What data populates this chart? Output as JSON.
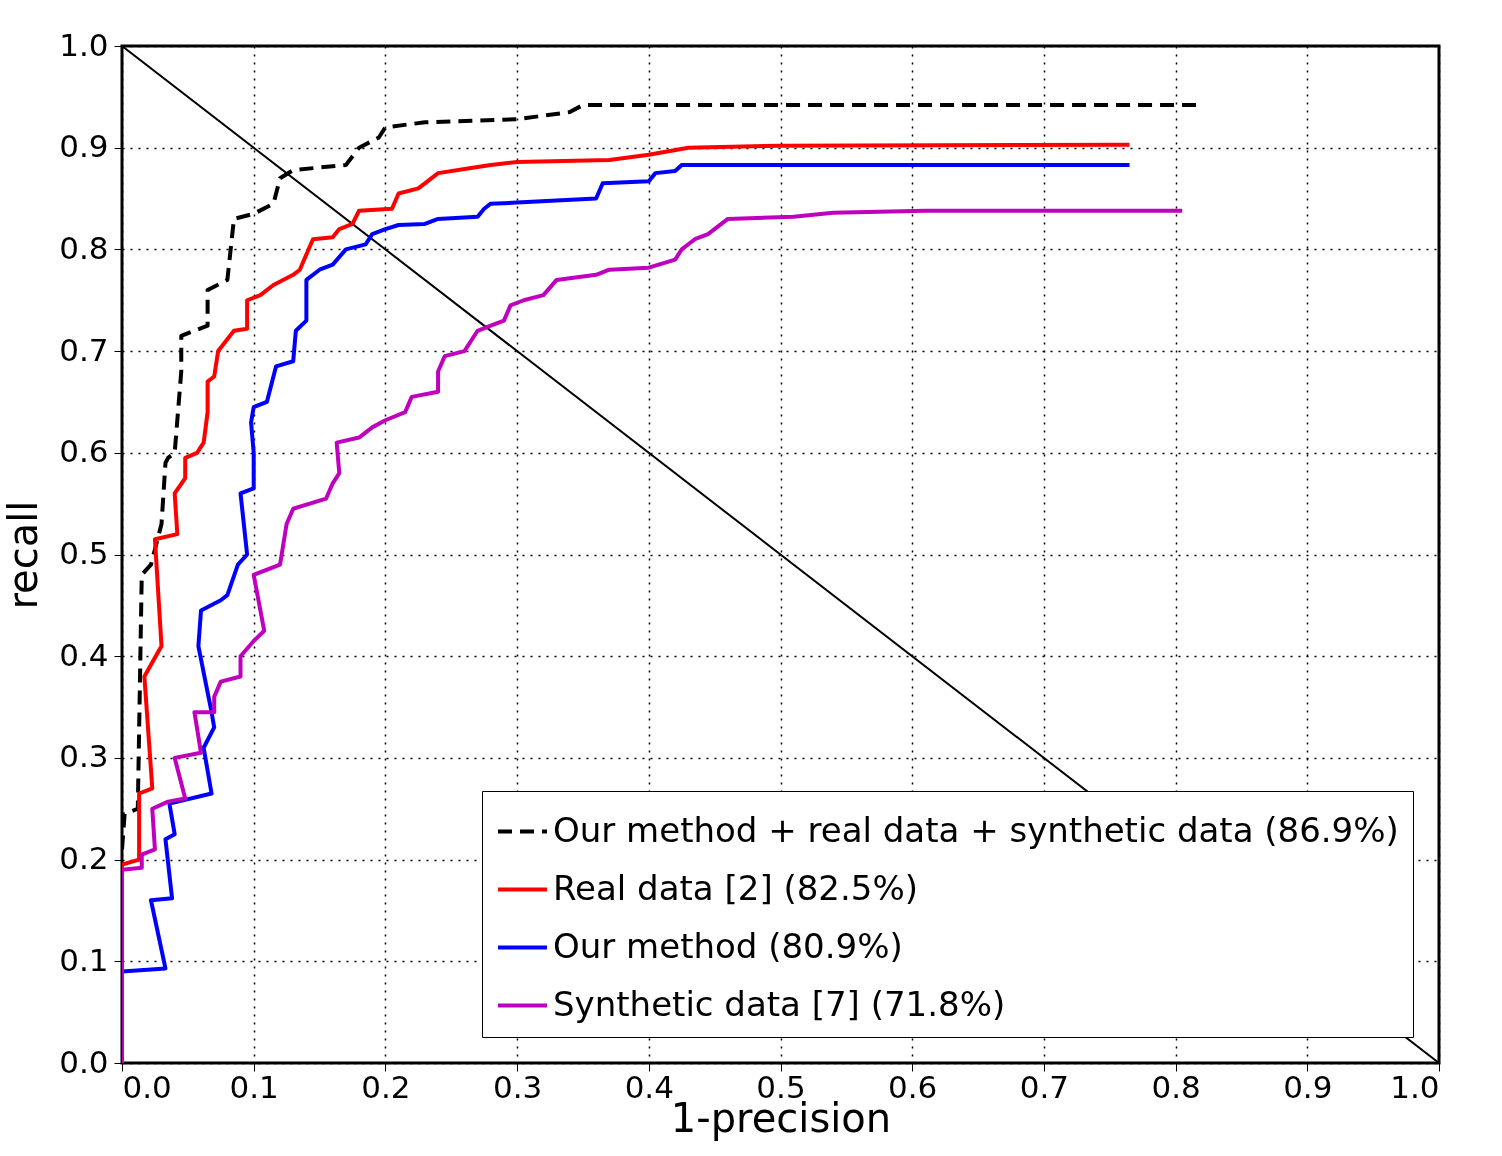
{
  "chart_data": {
    "type": "line",
    "xlabel": "1-precision",
    "ylabel": "recall",
    "xlim": [
      0,
      1
    ],
    "ylim": [
      0,
      1
    ],
    "xticks": [
      {
        "value": 0,
        "label": "0.0"
      },
      0.1,
      0.2,
      0.3,
      0.4,
      0.5,
      0.6,
      0.7,
      0.8,
      0.9,
      {
        "value": 1,
        "label": "1.0"
      }
    ],
    "yticks": [
      {
        "value": 0,
        "label": "0.0"
      },
      0.1,
      0.2,
      0.3,
      0.4,
      0.5,
      0.6,
      0.7,
      0.8,
      0.9,
      {
        "value": 1,
        "label": "1.0"
      }
    ],
    "grid": true,
    "legend": "bottom right",
    "marker": "none",
    "series": [
      {
        "name": "Our method + real data + synthetic data (86.9%)",
        "color": "#000000",
        "line_style": "dashed",
        "x": [
          0,
          0.002,
          0.012,
          0.015,
          0.022,
          0.03,
          0.033,
          0.035,
          0.04,
          0.045,
          0.045,
          0.065,
          0.065,
          0.08,
          0.085,
          0.1,
          0.115,
          0.12,
          0.13,
          0.17,
          0.18,
          0.195,
          0.2,
          0.23,
          0.3,
          0.34,
          0.35,
          0.82
        ],
        "values": [
          0.21,
          0.245,
          0.25,
          0.48,
          0.49,
          0.53,
          0.59,
          0.595,
          0.6,
          0.68,
          0.715,
          0.725,
          0.76,
          0.77,
          0.83,
          0.835,
          0.845,
          0.87,
          0.878,
          0.883,
          0.9,
          0.91,
          0.92,
          0.925,
          0.928,
          0.935,
          0.942,
          0.942
        ]
      },
      {
        "name": "Real data [2] (82.5%)",
        "color": "#ff0000",
        "line_style": "solid",
        "x": [
          0,
          0,
          0.013,
          0.013,
          0.023,
          0.017,
          0.03,
          0.025,
          0.042,
          0.04,
          0.048,
          0.048,
          0.057,
          0.062,
          0.065,
          0.065,
          0.07,
          0.073,
          0.085,
          0.095,
          0.095,
          0.105,
          0.115,
          0.13,
          0.135,
          0.14,
          0.145,
          0.16,
          0.165,
          0.175,
          0.18,
          0.205,
          0.21,
          0.225,
          0.23,
          0.24,
          0.265,
          0.28,
          0.3,
          0.37,
          0.4,
          0.43,
          0.5,
          0.765
        ],
        "values": [
          0,
          0.195,
          0.2,
          0.265,
          0.27,
          0.38,
          0.41,
          0.515,
          0.52,
          0.56,
          0.575,
          0.595,
          0.6,
          0.61,
          0.64,
          0.67,
          0.675,
          0.7,
          0.72,
          0.722,
          0.75,
          0.755,
          0.765,
          0.775,
          0.78,
          0.795,
          0.81,
          0.812,
          0.82,
          0.825,
          0.838,
          0.84,
          0.855,
          0.86,
          0.865,
          0.875,
          0.88,
          0.883,
          0.886,
          0.888,
          0.893,
          0.9,
          0.902,
          0.903
        ]
      },
      {
        "name": "Our method (80.9%)",
        "color": "#0000ff",
        "line_style": "solid",
        "x": [
          0,
          0,
          0.033,
          0.022,
          0.038,
          0.033,
          0.04,
          0.036,
          0.068,
          0.062,
          0.07,
          0.068,
          0.058,
          0.06,
          0.075,
          0.08,
          0.088,
          0.095,
          0.09,
          0.1,
          0.1,
          0.098,
          0.1,
          0.11,
          0.112,
          0.117,
          0.13,
          0.132,
          0.14,
          0.14,
          0.15,
          0.16,
          0.17,
          0.185,
          0.19,
          0.2,
          0.21,
          0.23,
          0.24,
          0.27,
          0.275,
          0.28,
          0.3,
          0.36,
          0.365,
          0.4,
          0.405,
          0.42,
          0.425,
          0.765
        ],
        "values": [
          0,
          0.09,
          0.093,
          0.16,
          0.162,
          0.22,
          0.225,
          0.255,
          0.265,
          0.31,
          0.33,
          0.345,
          0.41,
          0.445,
          0.455,
          0.46,
          0.49,
          0.5,
          0.56,
          0.565,
          0.6,
          0.63,
          0.645,
          0.65,
          0.66,
          0.685,
          0.69,
          0.72,
          0.73,
          0.77,
          0.78,
          0.785,
          0.8,
          0.805,
          0.815,
          0.82,
          0.824,
          0.825,
          0.83,
          0.832,
          0.84,
          0.845,
          0.846,
          0.85,
          0.865,
          0.867,
          0.875,
          0.877,
          0.883,
          0.883
        ]
      },
      {
        "name": "Synthetic data [7] (71.8%)",
        "color": "#bf00bf",
        "line_style": "solid",
        "x": [
          0,
          0,
          0.015,
          0.015,
          0.025,
          0.023,
          0.035,
          0.048,
          0.04,
          0.06,
          0.055,
          0.07,
          0.07,
          0.075,
          0.09,
          0.09,
          0.1,
          0.108,
          0.1,
          0.12,
          0.125,
          0.13,
          0.155,
          0.16,
          0.165,
          0.163,
          0.18,
          0.19,
          0.2,
          0.215,
          0.22,
          0.24,
          0.24,
          0.245,
          0.26,
          0.27,
          0.28,
          0.29,
          0.295,
          0.305,
          0.32,
          0.33,
          0.36,
          0.37,
          0.4,
          0.42,
          0.425,
          0.435,
          0.445,
          0.46,
          0.51,
          0.54,
          0.61,
          0.805
        ],
        "values": [
          0,
          0.19,
          0.192,
          0.205,
          0.21,
          0.25,
          0.257,
          0.26,
          0.3,
          0.305,
          0.345,
          0.345,
          0.36,
          0.375,
          0.38,
          0.4,
          0.415,
          0.425,
          0.48,
          0.49,
          0.53,
          0.545,
          0.555,
          0.57,
          0.58,
          0.61,
          0.615,
          0.625,
          0.632,
          0.64,
          0.655,
          0.66,
          0.68,
          0.695,
          0.7,
          0.72,
          0.725,
          0.73,
          0.745,
          0.75,
          0.755,
          0.77,
          0.775,
          0.78,
          0.782,
          0.79,
          0.8,
          0.81,
          0.815,
          0.83,
          0.832,
          0.836,
          0.838,
          0.838
        ]
      },
      {
        "color": "#000000",
        "line_style": "solid",
        "x": [
          0,
          1
        ],
        "values": [
          1,
          0
        ]
      }
    ]
  }
}
